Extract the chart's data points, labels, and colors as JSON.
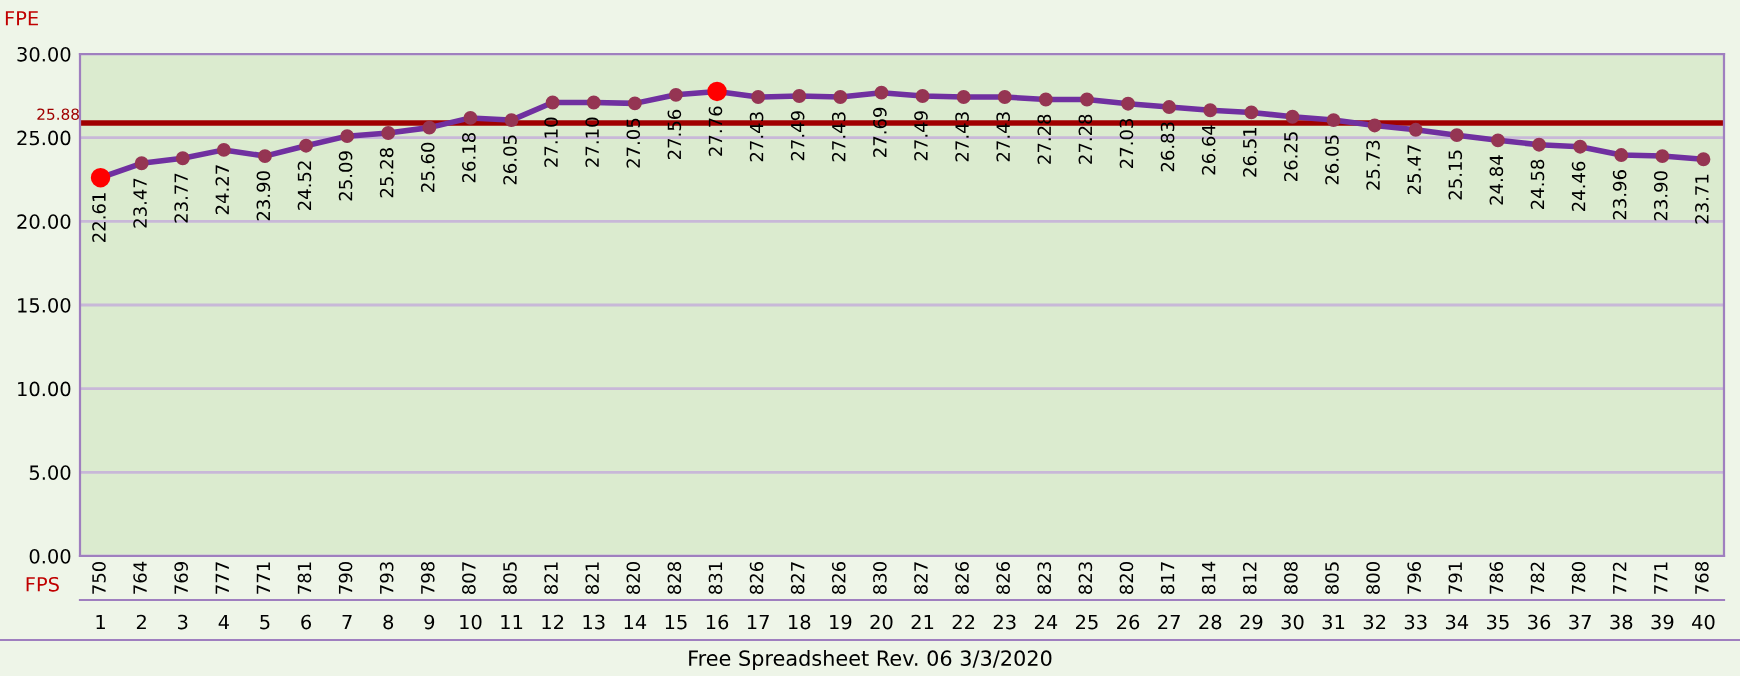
{
  "chart_data": {
    "type": "line",
    "ylabel": "FPE",
    "categories": [
      "1",
      "2",
      "3",
      "4",
      "5",
      "6",
      "7",
      "8",
      "9",
      "10",
      "11",
      "12",
      "13",
      "14",
      "15",
      "16",
      "17",
      "18",
      "19",
      "20",
      "21",
      "22",
      "23",
      "24",
      "25",
      "26",
      "27",
      "28",
      "29",
      "30",
      "31",
      "32",
      "33",
      "34",
      "35",
      "36",
      "37",
      "38",
      "39",
      "40"
    ],
    "series": [
      {
        "color": "#7030a0",
        "values": [
          22.61,
          23.47,
          23.77,
          24.27,
          23.9,
          24.52,
          25.09,
          25.28,
          25.6,
          26.18,
          26.05,
          27.1,
          27.1,
          27.05,
          27.56,
          27.76,
          27.43,
          27.49,
          27.43,
          27.69,
          27.49,
          27.43,
          27.43,
          27.28,
          27.28,
          27.03,
          26.83,
          26.64,
          26.51,
          26.25,
          26.05,
          25.73,
          25.47,
          25.15,
          24.84,
          24.58,
          24.46,
          23.96,
          23.9,
          23.71
        ],
        "value_labels": [
          "22.61",
          "23.47",
          "23.77",
          "24.27",
          "23.90",
          "24.52",
          "25.09",
          "25.28",
          "25.60",
          "26.18",
          "26.05",
          "27.10",
          "27.10",
          "27.05",
          "27.56",
          "27.76",
          "27.43",
          "27.49",
          "27.43",
          "27.69",
          "27.49",
          "27.43",
          "27.43",
          "27.28",
          "27.28",
          "27.03",
          "26.83",
          "26.64",
          "26.51",
          "26.25",
          "26.05",
          "25.73",
          "25.47",
          "25.15",
          "24.84",
          "24.58",
          "24.46",
          "23.96",
          "23.90",
          "23.71"
        ],
        "colors": [
          "#ff0000",
          "#953553",
          "#953553",
          "#953553",
          "#953553",
          "#953553",
          "#953553",
          "#953553",
          "#953553",
          "#953553",
          "#953553",
          "#953553",
          "#953553",
          "#953553",
          "#953553",
          "#ff0000",
          "#953553",
          "#953553",
          "#953553",
          "#953553",
          "#953553",
          "#953553",
          "#953553",
          "#953553",
          "#953553",
          "#953553",
          "#953553",
          "#953553",
          "#953553",
          "#953553",
          "#953553",
          "#953553",
          "#953553",
          "#953553",
          "#953553",
          "#953553",
          "#953553",
          "#953553",
          "#953553",
          "#953553"
        ]
      }
    ],
    "ylim": [
      0,
      30
    ],
    "yticks": [
      {
        "value": 0,
        "label": "0.00"
      },
      {
        "value": 5,
        "label": "5.00"
      },
      {
        "value": 10,
        "label": "10.00"
      },
      {
        "value": 15,
        "label": "15.00"
      },
      {
        "value": 20,
        "label": "20.00"
      },
      {
        "value": 25,
        "label": "25.00"
      },
      {
        "value": 30,
        "label": "30.00"
      }
    ],
    "ref_lines": [
      {
        "axis": "y",
        "value": 25.88,
        "label": "25.88",
        "color": "#a00000"
      }
    ],
    "grid": "y",
    "marker": "circle",
    "line_style": "solid",
    "annotations": [
      "FPS",
      "Free Spreadsheet Rev. 06 3/3/2020",
      "750",
      "764",
      "769",
      "777",
      "771",
      "781",
      "790",
      "793",
      "798",
      "807",
      "805",
      "821",
      "821",
      "820",
      "828",
      "831",
      "826",
      "827",
      "826",
      "830",
      "827",
      "826",
      "826",
      "823",
      "823",
      "820",
      "817",
      "814",
      "812",
      "808",
      "805",
      "800",
      "796",
      "791",
      "786",
      "782",
      "780",
      "772",
      "771",
      "768"
    ]
  }
}
